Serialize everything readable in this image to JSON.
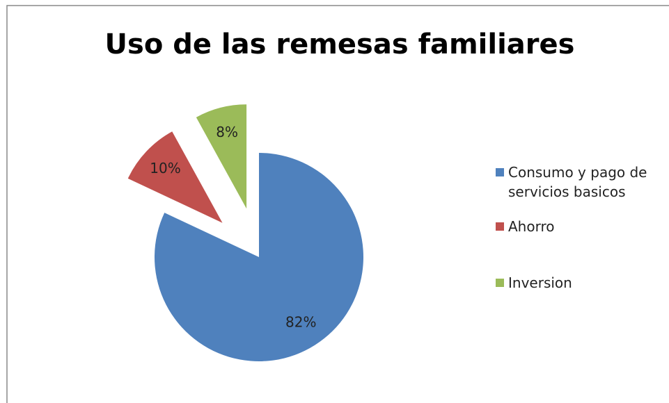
{
  "chart_data": {
    "type": "pie",
    "title": "Uso de las remesas familiares",
    "categories": [
      "Consumo y pago de servicios basicos",
      "Ahorro",
      "Inversion"
    ],
    "values": [
      82,
      10,
      8
    ],
    "value_labels": [
      "82%",
      "10%",
      "8%"
    ],
    "colors": [
      "#4f81bd",
      "#c0504d",
      "#9bbb59"
    ],
    "legend": "right"
  }
}
